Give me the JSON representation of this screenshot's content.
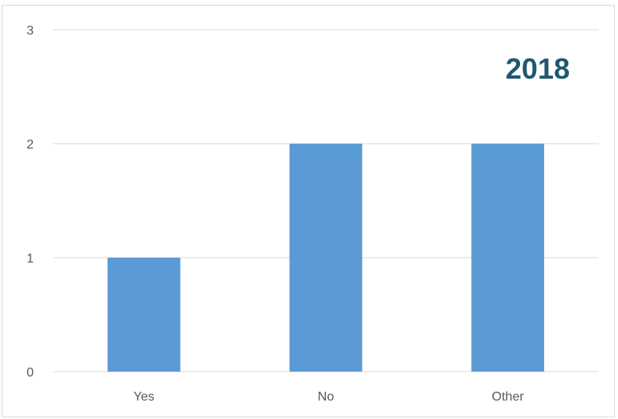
{
  "chart_data": {
    "type": "bar",
    "title": "2018",
    "categories": [
      "Yes",
      "No",
      "Other"
    ],
    "values": [
      1,
      2,
      2
    ],
    "ylim": [
      0,
      3
    ],
    "yticks": [
      0,
      1,
      2,
      3
    ],
    "grid": true,
    "legend": "none",
    "colors": {
      "bar": "#5b9bd5",
      "grid": "#d9d9d9",
      "title": "#1f5871",
      "axis": "#d9d9d9"
    }
  }
}
